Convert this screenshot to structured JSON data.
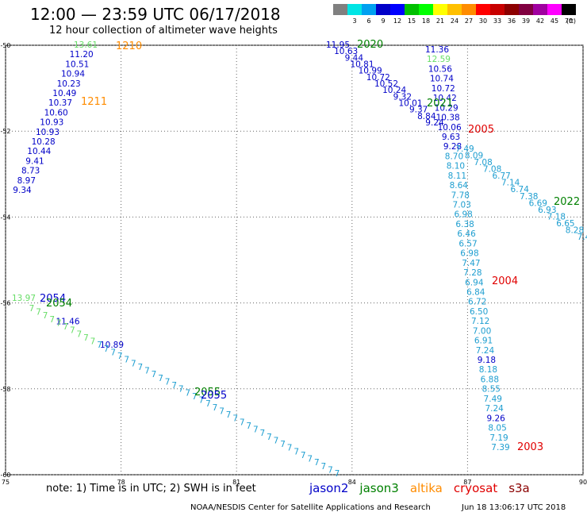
{
  "header": {
    "title": "12:00 — 23:59 UTC 06/17/2018",
    "subtitle": "12 hour collection of altimeter wave heights"
  },
  "colorbar": {
    "labels": [
      "",
      "3",
      "6",
      "9",
      "12",
      "15",
      "18",
      "21",
      "24",
      "27",
      "30",
      "33",
      "36",
      "39",
      "42",
      "45",
      "70"
    ],
    "colors": [
      "#808080",
      "#00e5e5",
      "#00a0f0",
      "#0000c8",
      "#0000ff",
      "#00c000",
      "#00ff00",
      "#ffff00",
      "#ffc000",
      "#ff8c00",
      "#ff0000",
      "#c80000",
      "#8c0000",
      "#800040",
      "#a000a0",
      "#ff00ff",
      "#000000"
    ],
    "unit": "(ft)"
  },
  "axes": {
    "lon_ticks": [
      "75",
      "78",
      "81",
      "84",
      "87",
      "90"
    ],
    "lat_ticks": [
      "-50",
      "-52",
      "-54",
      "-56",
      "-58",
      "-60"
    ]
  },
  "colors": {
    "jason2": "#0000c8",
    "jason3": "#008000",
    "altika": "#ff8c00",
    "cryosat": "#e00000",
    "s3a": "#8b0000",
    "light_green": "#66dd66",
    "cyan": "#1e9ed0"
  },
  "map_labels": {
    "track_1210": "1210",
    "track_1211": "1211",
    "track_2020": "2020",
    "track_2021": "2021",
    "track_2005": "2005",
    "track_2022": "2022",
    "track_2004": "2004",
    "track_2003": "2003",
    "track_2054a": "2054",
    "track_2054b": "2054",
    "track_2055a": "2055",
    "track_2055b": "2055"
  },
  "track_a": [
    "13.61",
    "11.20",
    "10.51",
    "10.94",
    "10.23",
    "10.49",
    "10.37",
    "10.60",
    "10.93",
    "10.93",
    "10.28",
    "10.44",
    "9.41",
    "8.73",
    "8.97",
    "9.34"
  ],
  "track_b": [
    "11.95",
    "10.63",
    "9.44",
    "10.81",
    "10.99",
    "10.72",
    "10.52",
    "10.24",
    "9.32",
    "10.01",
    "9.37",
    "8.84",
    "9.24"
  ],
  "track_c": [
    "11.36",
    "12.59",
    "10.56",
    "10.74",
    "10.72",
    "10.42",
    "10.29",
    "10.38",
    "10.06",
    "9.63",
    "9.28",
    "8.70",
    "8.10",
    "8.11",
    "8.64",
    "7.78",
    "7.03",
    "6.98",
    "6.38",
    "6.46",
    "6.57",
    "6.98",
    "7.47",
    "7.28",
    "6.94",
    "6.84",
    "6.72",
    "6.50",
    "7.12",
    "7.00",
    "6.91",
    "7.24",
    "9.18",
    "8.18",
    "6.88",
    "8.55",
    "7.49",
    "7.24",
    "9.26",
    "8.05",
    "7.19",
    "7.39"
  ],
  "track_d": [
    "7.49",
    "8.09",
    "7.08",
    "7.08",
    "6.77",
    "7.14",
    "6.74",
    "7.38",
    "6.69",
    "6.93",
    "7.18",
    "6.65",
    "8.28",
    "7.4"
  ],
  "track_e": [
    "13.97",
    "11.46",
    "10.89"
  ],
  "footer": {
    "note": "note:  1) Time is in UTC;  2) SWH is in feet",
    "sat_jason2": "jason2",
    "sat_jason3": "jason3",
    "sat_altika": "altika",
    "sat_cryosat": "cryosat",
    "sat_s3a": "s3a",
    "credit": "NOAA/NESDIS Center for Satellite Applications and Research",
    "timestamp": "Jun 18 13:06:17 UTC 2018"
  }
}
